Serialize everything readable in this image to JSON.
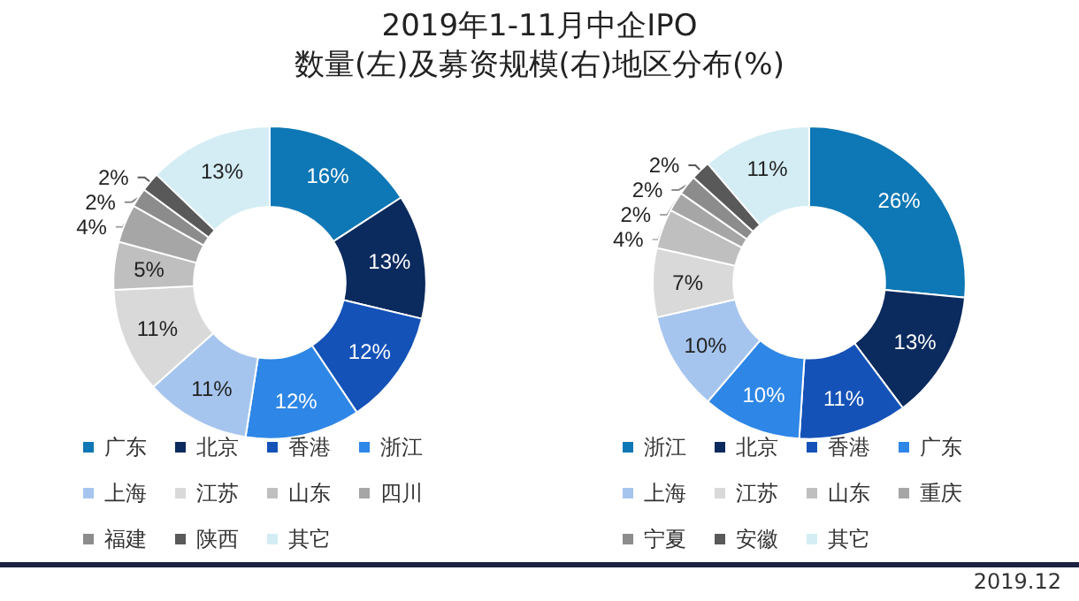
{
  "chart_data": [
    {
      "type": "donut",
      "title": "2019年1-11月中企IPO\n数量(左)及募资规模(右)地区分布(%)",
      "categories": [
        "广东",
        "北京",
        "香港",
        "浙江",
        "上海",
        "江苏",
        "山东",
        "四川",
        "福建",
        "陕西",
        "其它"
      ],
      "values": [
        16,
        13,
        12,
        12,
        11,
        11,
        5,
        4,
        2,
        2,
        13
      ],
      "colors": [
        "#0e77b5",
        "#0b2a5e",
        "#1452b8",
        "#2e86e6",
        "#a6c5ee",
        "#d9d9d9",
        "#bfbfbf",
        "#a6a6a6",
        "#8c8c8c",
        "#595959",
        "#d4edf4"
      ],
      "value_labels": [
        "16%",
        "13%",
        "12%",
        "12%",
        "11%",
        "11%",
        "5%",
        "4%",
        "2%",
        "2%",
        "13%"
      ],
      "legend": "bottom"
    },
    {
      "type": "donut",
      "categories": [
        "浙江",
        "北京",
        "香港",
        "广东",
        "上海",
        "江苏",
        "山东",
        "重庆",
        "宁夏",
        "安徽",
        "其它"
      ],
      "values": [
        26,
        13,
        11,
        10,
        10,
        7,
        4,
        2,
        2,
        2,
        11
      ],
      "colors": [
        "#0e77b5",
        "#0b2a5e",
        "#1452b8",
        "#2e86e6",
        "#a6c5ee",
        "#d9d9d9",
        "#bfbfbf",
        "#a6a6a6",
        "#8c8c8c",
        "#595959",
        "#d4edf4"
      ],
      "value_labels": [
        "26%",
        "13%",
        "11%",
        "10%",
        "10%",
        "7%",
        "4%",
        "2%",
        "2%",
        "2%",
        "11%"
      ],
      "legend": "bottom",
      "annotations": [
        "2019.12"
      ]
    }
  ]
}
